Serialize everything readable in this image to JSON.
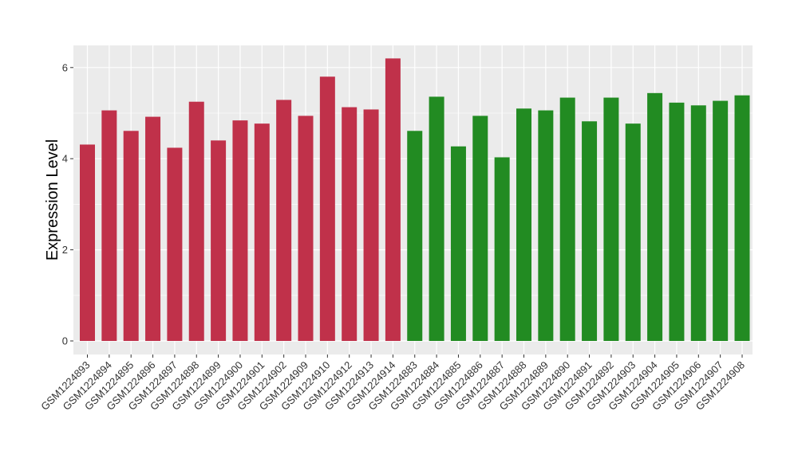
{
  "chart_data": {
    "type": "bar",
    "title": "",
    "xlabel": "",
    "ylabel": "Expression Level",
    "ylim": [
      0,
      6.5
    ],
    "yticks": [
      0,
      2,
      4,
      6
    ],
    "grid": true,
    "legend": "none",
    "colors": {
      "group_a": "#c0314a",
      "group_b": "#228b22",
      "panel_background": "#ebebeb",
      "gridline": "#ffffff"
    },
    "categories": [
      "GSM1224893",
      "GSM1224894",
      "GSM1224895",
      "GSM1224896",
      "GSM1224897",
      "GSM1224898",
      "GSM1224899",
      "GSM1224900",
      "GSM1224901",
      "GSM1224902",
      "GSM1224909",
      "GSM1224910",
      "GSM1224912",
      "GSM1224913",
      "GSM1224914",
      "GSM1224883",
      "GSM1224884",
      "GSM1224885",
      "GSM1224886",
      "GSM1224887",
      "GSM1224888",
      "GSM1224889",
      "GSM1224890",
      "GSM1224891",
      "GSM1224892",
      "GSM1224903",
      "GSM1224904",
      "GSM1224905",
      "GSM1224906",
      "GSM1224907",
      "GSM1224908"
    ],
    "values": [
      4.31,
      5.06,
      4.61,
      4.92,
      4.24,
      5.25,
      4.4,
      4.84,
      4.77,
      5.29,
      4.94,
      5.8,
      5.13,
      5.08,
      6.2,
      4.61,
      5.36,
      4.27,
      4.94,
      4.03,
      5.1,
      5.06,
      5.34,
      4.82,
      5.34,
      4.77,
      5.44,
      5.23,
      5.17,
      5.27,
      5.39
    ],
    "groups": [
      "group_a",
      "group_a",
      "group_a",
      "group_a",
      "group_a",
      "group_a",
      "group_a",
      "group_a",
      "group_a",
      "group_a",
      "group_a",
      "group_a",
      "group_a",
      "group_a",
      "group_a",
      "group_b",
      "group_b",
      "group_b",
      "group_b",
      "group_b",
      "group_b",
      "group_b",
      "group_b",
      "group_b",
      "group_b",
      "group_b",
      "group_b",
      "group_b",
      "group_b",
      "group_b",
      "group_b"
    ]
  }
}
